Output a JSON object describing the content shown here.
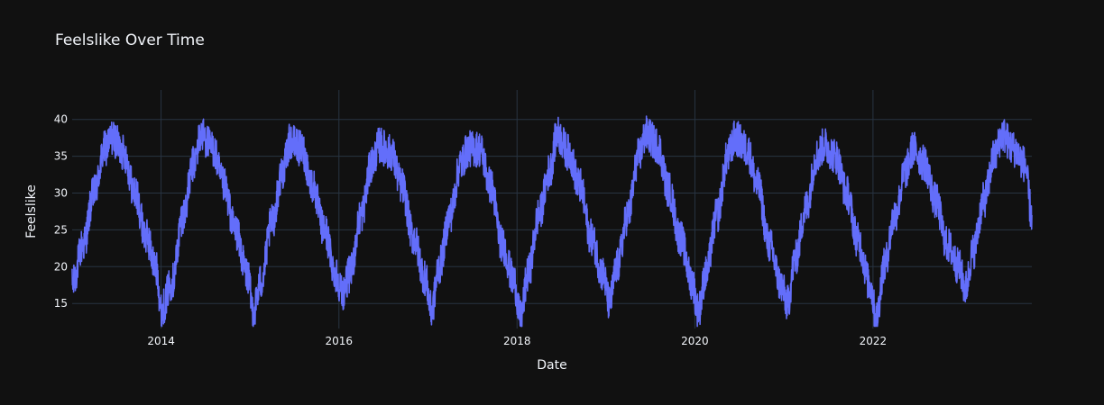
{
  "chart_data": {
    "type": "line",
    "title": "Feelslike Over Time",
    "xlabel": "Date",
    "ylabel": "Feelslike",
    "x_range": [
      "2013-01-01",
      "2023-10-15"
    ],
    "ylim": [
      11.6,
      44.0
    ],
    "x_ticks": [
      "2014",
      "2016",
      "2018",
      "2020",
      "2022"
    ],
    "y_ticks": [
      15,
      20,
      25,
      30,
      35,
      40
    ],
    "grid": true,
    "legend": "none",
    "series": [
      {
        "color": "#636efa",
        "x": [
          "2013-01-01",
          "2013-02-15",
          "2013-04-01",
          "2013-05-15",
          "2013-06-15",
          "2013-08-01",
          "2013-09-15",
          "2013-11-01",
          "2013-12-15",
          "2014-01-01",
          "2014-02-15",
          "2014-04-01",
          "2014-05-15",
          "2014-06-15",
          "2014-08-01",
          "2014-09-15",
          "2014-11-01",
          "2014-12-20",
          "2015-01-15",
          "2015-02-15",
          "2015-04-01",
          "2015-05-15",
          "2015-06-15",
          "2015-08-01",
          "2015-09-15",
          "2015-11-01",
          "2015-12-20",
          "2016-01-15",
          "2016-02-15",
          "2016-04-01",
          "2016-05-15",
          "2016-06-15",
          "2016-08-01",
          "2016-09-15",
          "2016-11-01",
          "2016-12-20",
          "2017-01-15",
          "2017-02-15",
          "2017-04-01",
          "2017-05-15",
          "2017-06-15",
          "2017-08-01",
          "2017-09-15",
          "2017-11-01",
          "2017-12-20",
          "2018-01-15",
          "2018-02-15",
          "2018-04-01",
          "2018-05-15",
          "2018-06-15",
          "2018-08-01",
          "2018-09-15",
          "2018-11-01",
          "2018-12-20",
          "2019-01-15",
          "2019-02-15",
          "2019-04-01",
          "2019-05-15",
          "2019-06-15",
          "2019-08-01",
          "2019-09-15",
          "2019-11-01",
          "2019-12-20",
          "2020-01-15",
          "2020-02-15",
          "2020-04-01",
          "2020-05-15",
          "2020-06-15",
          "2020-08-01",
          "2020-09-15",
          "2020-11-01",
          "2020-12-20",
          "2021-01-15",
          "2021-02-15",
          "2021-04-01",
          "2021-05-15",
          "2021-06-15",
          "2021-08-01",
          "2021-09-15",
          "2021-11-01",
          "2021-12-20",
          "2022-01-15",
          "2022-02-15",
          "2022-04-01",
          "2022-05-15",
          "2022-06-15",
          "2022-08-01",
          "2022-09-15",
          "2022-11-01",
          "2022-12-20",
          "2023-01-15",
          "2023-02-15",
          "2023-04-01",
          "2023-05-15",
          "2023-06-15",
          "2023-08-01",
          "2023-09-15",
          "2023-10-15"
        ],
        "y": [
          17.5,
          23.0,
          30.0,
          36.0,
          37.5,
          35.5,
          30.0,
          24.0,
          19.5,
          14.0,
          18.0,
          27.0,
          34.0,
          38.0,
          36.0,
          31.0,
          25.0,
          19.0,
          14.0,
          18.0,
          26.0,
          33.0,
          37.0,
          36.0,
          31.0,
          25.0,
          19.0,
          16.5,
          19.0,
          27.0,
          34.0,
          36.5,
          35.5,
          31.0,
          24.0,
          18.5,
          14.0,
          20.0,
          27.0,
          34.0,
          36.0,
          36.0,
          31.0,
          23.0,
          18.0,
          13.0,
          19.0,
          27.0,
          33.0,
          38.0,
          35.5,
          31.0,
          24.0,
          19.0,
          15.0,
          20.0,
          27.0,
          35.0,
          38.0,
          36.5,
          30.5,
          24.0,
          18.0,
          14.0,
          19.0,
          27.0,
          35.0,
          37.5,
          36.0,
          31.0,
          23.0,
          17.5,
          15.0,
          21.0,
          28.0,
          35.0,
          36.5,
          35.0,
          30.0,
          23.5,
          17.5,
          13.0,
          20.0,
          27.0,
          33.0,
          36.0,
          34.0,
          29.0,
          23.0,
          20.0,
          17.0,
          22.0,
          29.0,
          35.0,
          38.0,
          36.0,
          34.0,
          27.0
        ]
      }
    ]
  }
}
